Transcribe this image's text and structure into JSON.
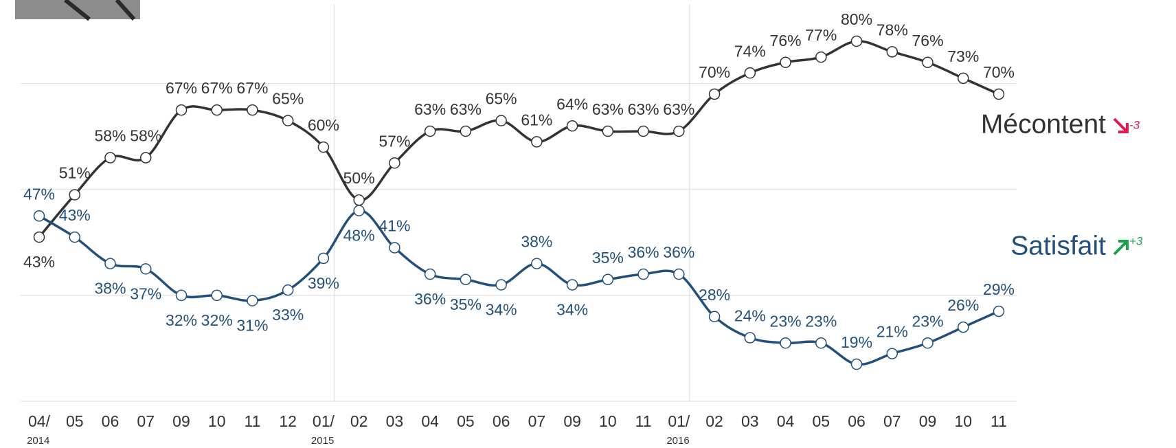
{
  "chart_data": {
    "type": "line",
    "categories": [
      "04/",
      "05",
      "06",
      "07",
      "09",
      "10",
      "11",
      "12",
      "01/",
      "02",
      "03",
      "04",
      "05",
      "06",
      "07",
      "09",
      "10",
      "11",
      "01/",
      "02",
      "03",
      "04",
      "05",
      "06",
      "07",
      "09",
      "10",
      "11"
    ],
    "year_labels": [
      {
        "category": 0,
        "label": "2014"
      },
      {
        "category": 8,
        "label": "2015"
      },
      {
        "category": 18,
        "label": "2016"
      }
    ],
    "series": [
      {
        "name": "Mécontent",
        "color": "#333333",
        "change": "-3",
        "change_color": "#e0194f",
        "values": [
          43,
          51,
          58,
          58,
          67,
          67,
          67,
          65,
          60,
          50,
          57,
          63,
          63,
          65,
          61,
          64,
          63,
          63,
          63,
          70,
          74,
          76,
          77,
          80,
          78,
          76,
          73,
          70
        ],
        "value_labels": [
          "43%",
          "51%",
          "58%",
          "58%",
          "67%",
          "67%",
          "67%",
          "65%",
          "60%",
          "50%",
          "57%",
          "63%",
          "63%",
          "65%",
          "61%",
          "64%",
          "63%",
          "63%",
          "63%",
          "70%",
          "74%",
          "76%",
          "77%",
          "80%",
          "78%",
          "76%",
          "73%",
          "70%"
        ]
      },
      {
        "name": "Satisfait",
        "color": "#22507a",
        "change": "+3",
        "change_color": "#1aa14a",
        "values": [
          47,
          43,
          38,
          37,
          32,
          32,
          31,
          33,
          39,
          48,
          41,
          36,
          35,
          34,
          38,
          34,
          35,
          36,
          36,
          28,
          24,
          23,
          23,
          19,
          21,
          23,
          26,
          29
        ],
        "value_labels": [
          "47%",
          "43%",
          "38%",
          "37%",
          "32%",
          "32%",
          "31%",
          "33%",
          "39%",
          "48%",
          "41%",
          "36%",
          "35%",
          "34%",
          "38%",
          "34%",
          "35%",
          "36%",
          "36%",
          "28%",
          "24%",
          "23%",
          "23%",
          "19%",
          "21%",
          "23%",
          "26%",
          "29%"
        ]
      }
    ],
    "ylim": [
      12,
      87
    ],
    "ygrid": [
      12,
      32,
      52,
      72
    ],
    "grid": true
  }
}
